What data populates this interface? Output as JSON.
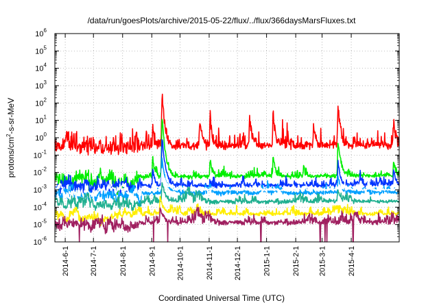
{
  "chart_data": {
    "type": "line",
    "title": "/data/run/goesPlots/archive/2015-05-22/flux/../flux/366daysMarsFluxes.txt",
    "xlabel": "Coordinated Universal Time (UTC)",
    "ylabel_main": "protons/cm",
    "ylabel_sup": "2",
    "ylabel_rest": "-s-sr-MeV",
    "y_scale": "log",
    "ylim": [
      1e-06,
      1000000.0
    ],
    "y_tick_exponents": [
      "-6",
      "-5",
      "-4",
      "-3",
      "-2",
      "-1",
      "0",
      "1",
      "2",
      "3",
      "4",
      "5",
      "6"
    ],
    "y_tick_base": "10",
    "xlim": [
      "2014-05-21",
      "2015-05-22"
    ],
    "x_ticks": [
      {
        "date": "2014-06-01",
        "label": "2014-6-1"
      },
      {
        "date": "2014-07-01",
        "label": "2014-7-1"
      },
      {
        "date": "2014-08-01",
        "label": "2014-8-1"
      },
      {
        "date": "2014-09-01",
        "label": "2014-9-1"
      },
      {
        "date": "2014-10-01",
        "label": "2014-10-1"
      },
      {
        "date": "2014-11-01",
        "label": "2014-11-1"
      },
      {
        "date": "2014-12-01",
        "label": "2014-12-1"
      },
      {
        "date": "2015-01-01",
        "label": "2015-1-1"
      },
      {
        "date": "2015-02-01",
        "label": "2015-2-1"
      },
      {
        "date": "2015-03-01",
        "label": "2015-3-1"
      },
      {
        "date": "2015-04-01",
        "label": "2015-4-1"
      }
    ],
    "grid": true,
    "series": [
      {
        "color": "#ff0000",
        "baseline_exp": -0.7,
        "noise": 0.45,
        "events": [
          {
            "date": "2014-09-12",
            "peak_exp": 2.5,
            "width": 3
          },
          {
            "date": "2014-06-02",
            "peak_exp": 0.5,
            "width": 2
          },
          {
            "date": "2014-09-02",
            "peak_exp": 0.7,
            "width": 2
          },
          {
            "date": "2014-10-22",
            "peak_exp": 1.0,
            "width": 3
          },
          {
            "date": "2014-11-02",
            "peak_exp": 1.4,
            "width": 2
          },
          {
            "date": "2014-12-14",
            "peak_exp": 1.0,
            "width": 3
          },
          {
            "date": "2015-01-08",
            "peak_exp": 1.2,
            "width": 3
          },
          {
            "date": "2015-02-20",
            "peak_exp": 0.8,
            "width": 2
          },
          {
            "date": "2015-03-18",
            "peak_exp": 1.9,
            "width": 3
          },
          {
            "date": "2015-05-16",
            "peak_exp": 0.9,
            "width": 3
          }
        ]
      },
      {
        "color": "#00ee00",
        "baseline_exp": -2.3,
        "noise": 0.22,
        "events": [
          {
            "date": "2014-09-12",
            "peak_exp": 1.3,
            "width": 3
          },
          {
            "date": "2014-09-02",
            "peak_exp": -1.2,
            "width": 2
          },
          {
            "date": "2014-11-02",
            "peak_exp": -1.2,
            "width": 2
          },
          {
            "date": "2015-01-08",
            "peak_exp": -1.0,
            "width": 2
          },
          {
            "date": "2015-03-18",
            "peak_exp": -0.3,
            "width": 3
          },
          {
            "date": "2015-05-16",
            "peak_exp": -1.3,
            "width": 2
          }
        ]
      },
      {
        "color": "#0033ff",
        "baseline_exp": -2.8,
        "noise": 0.2,
        "events": [
          {
            "date": "2014-09-12",
            "peak_exp": 0.0,
            "width": 3
          },
          {
            "date": "2014-09-02",
            "peak_exp": -1.8,
            "width": 2
          },
          {
            "date": "2015-03-18",
            "peak_exp": -1.3,
            "width": 2
          },
          {
            "date": "2015-05-16",
            "peak_exp": -1.8,
            "width": 2
          }
        ]
      },
      {
        "color": "#00a0ff",
        "baseline_exp": -3.2,
        "noise": 0.15,
        "events": [
          {
            "date": "2014-09-12",
            "peak_exp": -1.2,
            "width": 3
          },
          {
            "date": "2015-03-18",
            "peak_exp": -2.2,
            "width": 2
          }
        ]
      },
      {
        "color": "#ffffff",
        "baseline_exp": -3.0,
        "noise": 0.1,
        "events": [
          {
            "date": "2014-09-12",
            "peak_exp": -1.8,
            "width": 3
          }
        ]
      },
      {
        "color": "#20b090",
        "baseline_exp": -3.7,
        "noise": 0.15,
        "events": [
          {
            "date": "2014-09-12",
            "peak_exp": -2.6,
            "width": 3
          },
          {
            "date": "2015-03-18",
            "peak_exp": -3.0,
            "width": 2
          }
        ]
      },
      {
        "color": "#ffee00",
        "baseline_exp": -4.4,
        "noise": 0.12,
        "events": [
          {
            "date": "2014-09-10",
            "peak_exp": -3.4,
            "width": 3
          }
        ]
      },
      {
        "color": "#a02060",
        "baseline_exp": -4.9,
        "noise": 0.17,
        "events": [
          {
            "date": "2014-09-10",
            "peak_exp": -4.0,
            "width": 3
          }
        ],
        "dropouts": [
          "2014-06-16",
          "2014-09-03",
          "2014-09-18",
          "2014-12-26",
          "2015-02-27",
          "2015-03-04",
          "2015-03-06",
          "2015-04-03"
        ]
      }
    ]
  }
}
